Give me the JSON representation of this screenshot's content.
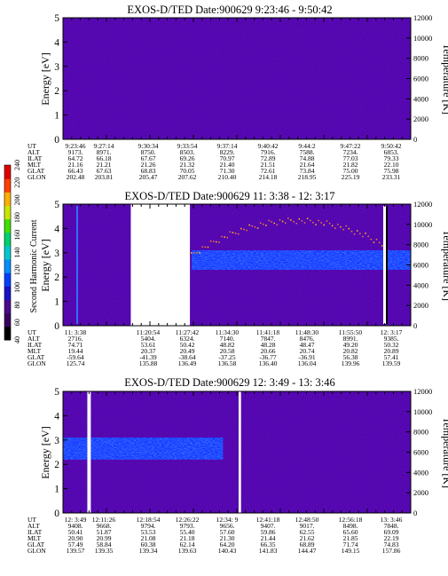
{
  "chart_data": [
    {
      "type": "heatmap",
      "title": "EXOS-D/TED   Date:900629   9:23:46 - 9:50:42",
      "ylabel": "Energy [eV]",
      "ylabel_right": "Temperature [K]",
      "ylim": [
        0,
        5
      ],
      "yticks": [
        "0",
        "1",
        "2",
        "3",
        "4",
        "5"
      ],
      "ylim_right": [
        0,
        12000
      ],
      "yticks_right": [
        "0",
        "2000",
        "4000",
        "6000",
        "8000",
        "10000",
        "12000"
      ],
      "ephemeris_labels": [
        "UT",
        "ALT",
        "ILAT",
        "MLT",
        "GLAT",
        "GLON"
      ],
      "ephemeris": [
        [
          "9:23:46",
          "9173.",
          "64.72",
          "21.16",
          "66.43",
          "202.48"
        ],
        [
          "9:27:14",
          "8971.",
          "66.18",
          "21.21",
          "67.63",
          "203.81"
        ],
        [
          "9:30:34",
          "8750.",
          "67.67",
          "21.26",
          "68.83",
          "205.47"
        ],
        [
          "9:33:54",
          "8503.",
          "69.26",
          "21.32",
          "70.05",
          "207.62"
        ],
        [
          "9:37:14",
          "8229.",
          "70.97",
          "21.40",
          "71.30",
          "210.40"
        ],
        [
          "9:40:42",
          "7916.",
          "72.89",
          "21.51",
          "72.61",
          "214.18"
        ],
        [
          "9:44:2",
          "7588.",
          "74.88",
          "21.64",
          "73.84",
          "218.95"
        ],
        [
          "9:47:22",
          "7234.",
          "77.03",
          "21.82",
          "75.00",
          "225.19"
        ],
        [
          "9:50:42",
          "6853.",
          "79.33",
          "22.10",
          "75.98",
          "233.31"
        ]
      ],
      "gaps": [],
      "band": null
    },
    {
      "type": "heatmap",
      "title": "EXOS-D/TED   Date:900629   11: 3:38 - 12: 3:17",
      "ylabel": "Energy [eV]",
      "ylabel_right": "Temperature [K]",
      "ylim": [
        0,
        5
      ],
      "yticks": [
        "0",
        "1",
        "2",
        "3",
        "4",
        "5"
      ],
      "ylim_right": [
        0,
        12000
      ],
      "yticks_right": [
        "0",
        "2000",
        "4000",
        "6000",
        "8000",
        "10000",
        "12000"
      ],
      "ephemeris_labels": [
        "UT",
        "ALT",
        "ILAT",
        "MLT",
        "GLAT",
        "GLON"
      ],
      "ephemeris": [
        [
          "11: 3:38",
          "2716.",
          "74.71",
          "19.44",
          "-59.64",
          "125.74"
        ],
        [
          "",
          "",
          "",
          "",
          "",
          ""
        ],
        [
          "11:20:54",
          "5404.",
          "53.61",
          "20.37",
          "-41.39",
          "135.88"
        ],
        [
          "11:27:42",
          "6324.",
          "50.42",
          "20.49",
          "-38.64",
          "136.49"
        ],
        [
          "11:34:30",
          "7140.",
          "48.82",
          "20.58",
          "-37.25",
          "136.58"
        ],
        [
          "11:41:18",
          "7847.",
          "48.28",
          "20.66",
          "-36.77",
          "136.40"
        ],
        [
          "11:48:30",
          "8476.",
          "48.47",
          "20.74",
          "-36.91",
          "136.04"
        ],
        [
          "11:55:50",
          "8991.",
          "49.20",
          "20.82",
          "56.38",
          "139.96"
        ],
        [
          "12: 3:17",
          "9385.",
          "50.32",
          "20.89",
          "57.41",
          "139.59"
        ]
      ],
      "gaps": [
        [
          0.195,
          0.365
        ]
      ],
      "band": {
        "energy_low": 2.3,
        "energy_high": 3.1,
        "start": 0.37
      }
    },
    {
      "type": "heatmap",
      "title": "EXOS-D/TED   Date:900629   12: 3:49 - 13: 3:46",
      "ylabel": "Energy [eV]",
      "ylabel_right": "Temperature [K]",
      "ylim": [
        0,
        5
      ],
      "yticks": [
        "0",
        "1",
        "2",
        "3",
        "4",
        "5"
      ],
      "ylim_right": [
        0,
        12000
      ],
      "yticks_right": [
        "0",
        "2000",
        "4000",
        "6000",
        "8000",
        "10000",
        "12000"
      ],
      "ephemeris_labels": [
        "UT",
        "ALT",
        "ILAT",
        "MLT",
        "GLAT",
        "GLON"
      ],
      "ephemeris": [
        [
          "12: 3:49",
          "9408.",
          "50.41",
          "20.90",
          "57.49",
          "139.57"
        ],
        [
          "12:11:26",
          "9668.",
          "51.87",
          "20.99",
          "58.84",
          "139.35"
        ],
        [
          "12:18:54",
          "9794.",
          "53.53",
          "21.08",
          "60.38",
          "139.34"
        ],
        [
          "12:26:22",
          "9793.",
          "55.40",
          "21.18",
          "62.14",
          "139.63"
        ],
        [
          "12:34: 9",
          "9656.",
          "57.60",
          "21.30",
          "64.20",
          "140.43"
        ],
        [
          "12:41:18",
          "9407.",
          "59.86",
          "21.44",
          "66.35",
          "141.83"
        ],
        [
          "12:48:50",
          "9017.",
          "62.55",
          "21.62",
          "68.89",
          "144.47"
        ],
        [
          "12:56:18",
          "8498.",
          "65.60",
          "21.85",
          "71.74",
          "149.15"
        ],
        [
          "13: 3:46",
          "7848.",
          "69.09",
          "22.19",
          "74.83",
          "157.86"
        ]
      ],
      "gaps": [
        [
          0.07,
          0.08
        ],
        [
          0.505,
          0.512
        ]
      ],
      "band": {
        "energy_low": 2.2,
        "energy_high": 3.1,
        "start": 0.0,
        "end": 0.46
      }
    }
  ],
  "colorbar": {
    "label": "Second Harmonic Current",
    "ticks": [
      "40",
      "60",
      "80",
      "100",
      "120",
      "140",
      "160",
      "180",
      "200",
      "220",
      "240"
    ],
    "colors": [
      "#000000",
      "#3a0060",
      "#4a0a8a",
      "#1a10c8",
      "#0040ff",
      "#0090ff",
      "#00c8d0",
      "#00d070",
      "#40e000",
      "#c8e800",
      "#ffb000",
      "#ff4000",
      "#e00000"
    ]
  }
}
